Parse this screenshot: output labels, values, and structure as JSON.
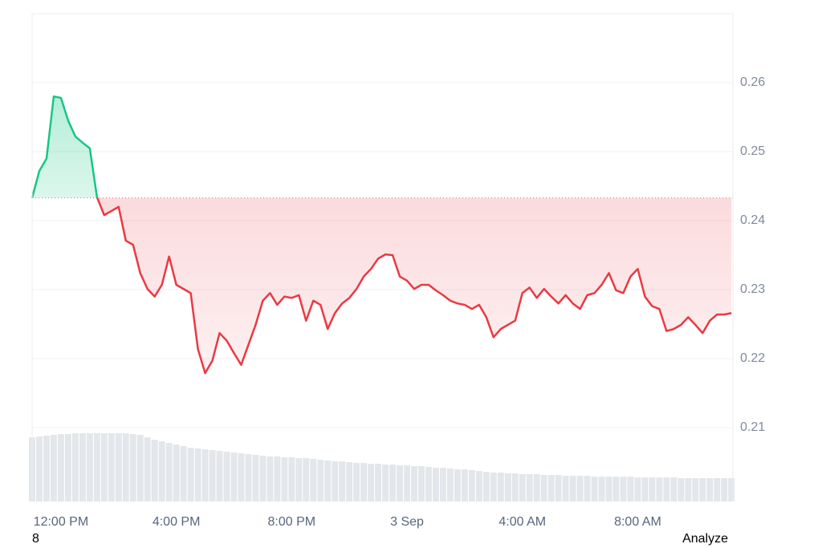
{
  "chart_data": {
    "type": "area-line",
    "x": [
      11,
      11.25,
      11.5,
      11.75,
      12,
      12.25,
      12.5,
      12.75,
      13,
      13.25,
      13.5,
      13.75,
      14,
      14.25,
      14.5,
      14.75,
      15,
      15.25,
      15.5,
      15.75,
      16,
      16.25,
      16.5,
      16.75,
      17,
      17.25,
      17.5,
      17.75,
      18,
      18.25,
      18.5,
      18.75,
      19,
      19.25,
      19.5,
      19.75,
      20,
      20.25,
      20.5,
      20.75,
      21,
      21.25,
      21.5,
      21.75,
      22,
      22.25,
      22.5,
      22.75,
      23,
      23.25,
      23.5,
      23.75,
      24,
      24.25,
      24.5,
      24.75,
      25,
      25.25,
      25.5,
      25.75,
      26,
      26.25,
      26.5,
      26.75,
      27,
      27.25,
      27.5,
      27.75,
      28,
      28.25,
      28.5,
      28.75,
      29,
      29.25,
      29.5,
      29.75,
      30,
      30.25,
      30.5,
      30.75,
      31,
      31.25,
      31.5,
      31.75,
      32,
      32.25,
      32.5,
      32.75,
      33,
      33.25,
      33.5,
      33.75,
      34,
      34.25,
      34.5,
      34.75,
      35,
      35.25
    ],
    "values": [
      0.2433,
      0.2472,
      0.249,
      0.258,
      0.2578,
      0.2545,
      0.2522,
      0.2513,
      0.2505,
      0.2434,
      0.2408,
      0.2414,
      0.242,
      0.2371,
      0.2365,
      0.2324,
      0.2301,
      0.229,
      0.2307,
      0.2348,
      0.2307,
      0.2301,
      0.2295,
      0.2214,
      0.2179,
      0.2197,
      0.2237,
      0.2226,
      0.2208,
      0.2191,
      0.222,
      0.2249,
      0.2284,
      0.2295,
      0.2278,
      0.229,
      0.2288,
      0.2292,
      0.2255,
      0.2284,
      0.2278,
      0.2243,
      0.2266,
      0.228,
      0.2288,
      0.2301,
      0.2319,
      0.233,
      0.2345,
      0.2351,
      0.235,
      0.2319,
      0.2313,
      0.2301,
      0.2307,
      0.2307,
      0.2299,
      0.2292,
      0.2284,
      0.228,
      0.2278,
      0.2272,
      0.2278,
      0.226,
      0.2231,
      0.2243,
      0.2249,
      0.2255,
      0.2295,
      0.2303,
      0.2288,
      0.2301,
      0.229,
      0.228,
      0.2292,
      0.228,
      0.2272,
      0.2292,
      0.2295,
      0.2307,
      0.2324,
      0.2299,
      0.2295,
      0.2319,
      0.233,
      0.229,
      0.2276,
      0.2272,
      0.224,
      0.2243,
      0.2249,
      0.226,
      0.2249,
      0.2237,
      0.2255,
      0.2264,
      0.2264,
      0.2266
    ],
    "volume": [
      80,
      81,
      82,
      83,
      84,
      84,
      85,
      85,
      85,
      85,
      85,
      85,
      85,
      85,
      84,
      83,
      80,
      77,
      75,
      73,
      71,
      69,
      67,
      66,
      65,
      64,
      63,
      62,
      61,
      60,
      59,
      58,
      57,
      56,
      56,
      55,
      55,
      54,
      54,
      53,
      52,
      51,
      50,
      50,
      49,
      48,
      48,
      47,
      47,
      46,
      46,
      45,
      45,
      44,
      44,
      43,
      42,
      42,
      41,
      40,
      40,
      39,
      38,
      37,
      36,
      36,
      35,
      35,
      34,
      34,
      34,
      33,
      33,
      33,
      32,
      32,
      32,
      32,
      31,
      31,
      31,
      31,
      31,
      31,
      30,
      30,
      30,
      30,
      30,
      30,
      29,
      29,
      29,
      29,
      29,
      29,
      29,
      29
    ],
    "volume_lim": [
      0,
      100
    ],
    "baseline": 0.2433,
    "up_color": "#16c784",
    "down_color": "#ea3943",
    "volume_color": "#e3e6ea",
    "xlim": [
      11,
      35.3
    ],
    "xticks": [
      {
        "value": 12,
        "label": "12:00 PM"
      },
      {
        "value": 16,
        "label": "4:00 PM"
      },
      {
        "value": 20,
        "label": "8:00 PM"
      },
      {
        "value": 24,
        "label": "3 Sep"
      },
      {
        "value": 28,
        "label": "4:00 AM"
      },
      {
        "value": 32,
        "label": "8:00 AM"
      }
    ],
    "ylim": [
      0.2,
      0.27
    ],
    "yticks": [
      0.21,
      0.22,
      0.23,
      0.24,
      0.25,
      0.26
    ],
    "grid": true
  },
  "footer": {
    "left": "8",
    "right": "Analyze"
  }
}
